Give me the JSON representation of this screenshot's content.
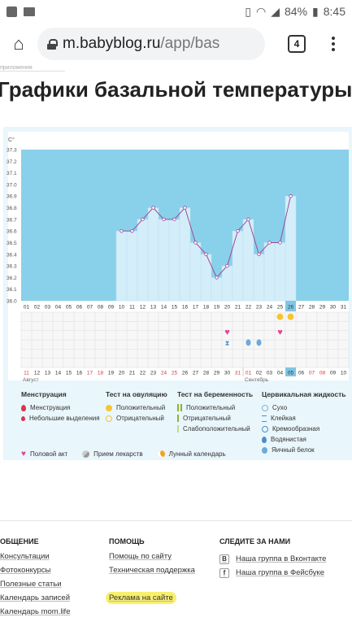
{
  "status_bar": {
    "battery": "84%",
    "time": "8:45"
  },
  "browser": {
    "url_host": "m.babyblog.ru",
    "url_path": "/app/bas",
    "tab_count": "4"
  },
  "page": {
    "breadcrumb_cut": "приложения",
    "title": "Графики базальной температуры"
  },
  "chart": {
    "unit_label": "С°",
    "month1": "Август",
    "month2": "Сентябрь"
  },
  "chart_data": {
    "type": "line",
    "ylabel": "С°",
    "ylim": [
      36.0,
      37.3
    ],
    "y_ticks": [
      "36.0",
      "36.1",
      "36.2",
      "36.3",
      "36.4",
      "36.5",
      "36.6",
      "36.7",
      "36.8",
      "36.9",
      "37.0",
      "37.1",
      "37.2",
      "37.3"
    ],
    "day_labels": [
      "01",
      "02",
      "03",
      "04",
      "05",
      "06",
      "07",
      "08",
      "09",
      "10",
      "11",
      "12",
      "13",
      "14",
      "15",
      "16",
      "17",
      "18",
      "19",
      "20",
      "21",
      "22",
      "23",
      "24",
      "25",
      "26",
      "27",
      "28",
      "29",
      "30",
      "31"
    ],
    "highlight_day_index": 25,
    "date_labels": [
      "11",
      "12",
      "13",
      "14",
      "15",
      "16",
      "17",
      "18",
      "19",
      "20",
      "21",
      "22",
      "23",
      "24",
      "25",
      "26",
      "27",
      "28",
      "29",
      "30",
      "31",
      "01",
      "02",
      "03",
      "04",
      "05",
      "06",
      "07",
      "08",
      "09",
      "10"
    ],
    "red_date_indices": [
      0,
      6,
      7,
      13,
      14,
      20,
      21,
      27,
      28
    ],
    "highlight_date_index": 25,
    "series": [
      {
        "start_index": 9,
        "values": [
          36.6,
          36.6,
          36.7,
          36.8,
          36.7,
          36.7,
          36.8,
          36.5,
          36.4,
          36.2,
          36.3,
          36.6,
          36.7,
          36.4,
          36.5,
          36.5,
          36.9
        ]
      }
    ],
    "markers": {
      "ovulation_positive": [
        24,
        25
      ],
      "sex_act": [
        19,
        24
      ],
      "sticky": [
        19
      ],
      "watery": [
        21,
        22
      ]
    },
    "colors": {
      "plot_bg": "#89d0ea",
      "bar": "#d4eef9",
      "line": "#a04a9a",
      "grid": "#dcdcdc",
      "highlight": "#7fc6e6"
    }
  },
  "legend": {
    "menstruation": {
      "title": "Менструация",
      "items": [
        "Менструация",
        "Небольшие выделения"
      ]
    },
    "ovulation": {
      "title": "Тест на овуляцию",
      "items": [
        "Положительный",
        "Отрицательный"
      ]
    },
    "pregnancy": {
      "title": "Тест на беременность",
      "items": [
        "Положительный",
        "Отрицательный",
        "Слабоположительный"
      ]
    },
    "cervical": {
      "title": "Цервикальная жидкость",
      "items": [
        "Сухо",
        "Клейкая",
        "Кремообразная",
        "Водянистая",
        "Яичный белок"
      ]
    },
    "bottom": [
      "Половой акт",
      "Прием лекарств",
      "Лунный календарь"
    ]
  },
  "footer": {
    "col1": {
      "title": "ОБЩЕНИЕ",
      "links": [
        "Консультации",
        "Фотоконкурсы",
        "Полезные статьи",
        "Календарь записей",
        "Календарь mom.life"
      ]
    },
    "col2": {
      "title": "ПОМОЩЬ",
      "links": [
        "Помощь по сайту",
        "Техническая поддержка",
        "Реклама на сайте"
      ]
    },
    "col3": {
      "title": "СЛЕДИТЕ ЗА НАМИ",
      "links": [
        "Наша группа в Вконтакте",
        "Наша группа в Фейсбуке"
      ]
    }
  }
}
